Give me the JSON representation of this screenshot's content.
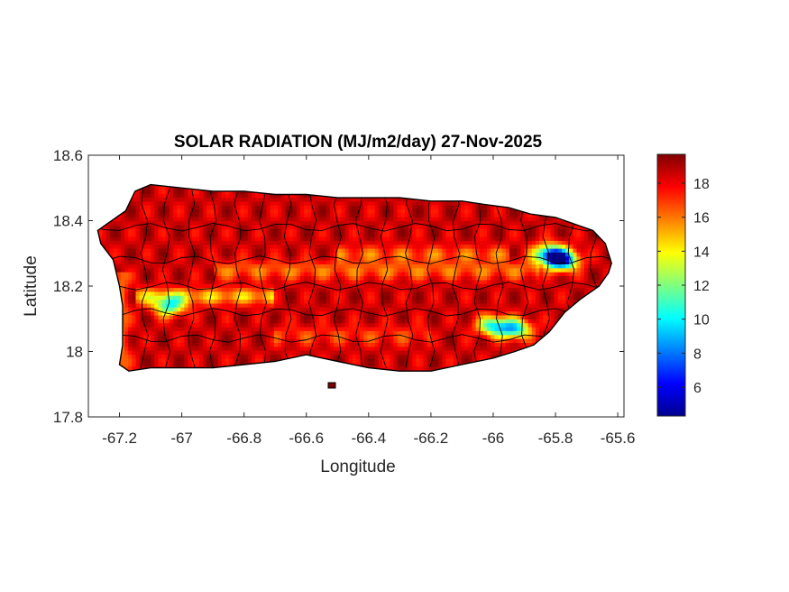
{
  "title": "SOLAR RADIATION (MJ/m2/day) 27-Nov-2025",
  "xlabel": "Longitude",
  "ylabel": "Latitude",
  "colormap": "jet",
  "colors": {
    "axis": "#262626",
    "border": "#000000",
    "background": "#ffffff"
  },
  "chart_data": {
    "type": "heatmap",
    "title": "SOLAR RADIATION (MJ/m2/day) 27-Nov-2025",
    "xlabel": "Longitude",
    "ylabel": "Latitude",
    "xlim": [
      -67.3,
      -65.58
    ],
    "ylim": [
      17.8,
      18.6
    ],
    "xticks": [
      -67.2,
      -67,
      -66.8,
      -66.6,
      -66.4,
      -66.2,
      -66,
      -65.8,
      -65.6
    ],
    "xtick_labels": [
      "-67.2",
      "-67",
      "-66.8",
      "-66.6",
      "-66.4",
      "-66.2",
      "-66",
      "-65.8",
      "-65.6"
    ],
    "yticks": [
      17.8,
      18,
      18.2,
      18.4,
      18.6
    ],
    "ytick_labels": [
      "17.8",
      "18",
      "18.2",
      "18.4",
      "18.6"
    ],
    "colorbar": {
      "range": [
        4.3,
        19.7
      ],
      "ticks": [
        6,
        8,
        10,
        12,
        14,
        16,
        18
      ],
      "tick_labels": [
        "6",
        "8",
        "10",
        "12",
        "14",
        "16",
        "18"
      ]
    },
    "field_approx": {
      "base_value": 18.5,
      "features": [
        {
          "lon": -66.35,
          "lat": 18.24,
          "value": 15.5,
          "kind": "ridge band"
        },
        {
          "lon": -66.9,
          "lat": 18.18,
          "value": 14.0,
          "kind": "band"
        },
        {
          "lon": -67.04,
          "lat": 18.14,
          "value": 11.0,
          "kind": "minimum"
        },
        {
          "lon": -65.78,
          "lat": 18.28,
          "value": 6.0,
          "kind": "minimum"
        },
        {
          "lon": -65.82,
          "lat": 18.3,
          "value": 9.0,
          "kind": "minimum"
        },
        {
          "lon": -66.0,
          "lat": 18.08,
          "value": 10.5,
          "kind": "minimum"
        },
        {
          "lon": -65.93,
          "lat": 18.07,
          "value": 10.0,
          "kind": "minimum"
        },
        {
          "lon": -67.2,
          "lat": 18.1,
          "value": 14.0,
          "kind": "coastal band"
        }
      ]
    },
    "island_outline": [
      [
        -67.27,
        18.37
      ],
      [
        -67.24,
        18.39
      ],
      [
        -67.18,
        18.43
      ],
      [
        -67.15,
        18.49
      ],
      [
        -67.1,
        18.51
      ],
      [
        -67.0,
        18.5
      ],
      [
        -66.9,
        18.49
      ],
      [
        -66.8,
        18.49
      ],
      [
        -66.7,
        18.48
      ],
      [
        -66.6,
        18.48
      ],
      [
        -66.5,
        18.47
      ],
      [
        -66.4,
        18.47
      ],
      [
        -66.3,
        18.47
      ],
      [
        -66.2,
        18.46
      ],
      [
        -66.1,
        18.46
      ],
      [
        -66.03,
        18.45
      ],
      [
        -65.95,
        18.44
      ],
      [
        -65.88,
        18.42
      ],
      [
        -65.8,
        18.41
      ],
      [
        -65.74,
        18.39
      ],
      [
        -65.68,
        18.37
      ],
      [
        -65.64,
        18.33
      ],
      [
        -65.62,
        18.27
      ],
      [
        -65.63,
        18.24
      ],
      [
        -65.66,
        18.2
      ],
      [
        -65.72,
        18.16
      ],
      [
        -65.77,
        18.12
      ],
      [
        -65.82,
        18.06
      ],
      [
        -65.87,
        18.02
      ],
      [
        -65.93,
        18.0
      ],
      [
        -66.0,
        17.98
      ],
      [
        -66.1,
        17.96
      ],
      [
        -66.2,
        17.94
      ],
      [
        -66.3,
        17.94
      ],
      [
        -66.4,
        17.95
      ],
      [
        -66.5,
        17.97
      ],
      [
        -66.6,
        17.99
      ],
      [
        -66.7,
        17.97
      ],
      [
        -66.8,
        17.96
      ],
      [
        -66.9,
        17.95
      ],
      [
        -67.0,
        17.95
      ],
      [
        -67.1,
        17.95
      ],
      [
        -67.17,
        17.94
      ],
      [
        -67.2,
        17.96
      ],
      [
        -67.19,
        18.02
      ],
      [
        -67.19,
        18.08
      ],
      [
        -67.19,
        18.14
      ],
      [
        -67.2,
        18.2
      ],
      [
        -67.22,
        18.28
      ],
      [
        -67.26,
        18.33
      ]
    ]
  }
}
